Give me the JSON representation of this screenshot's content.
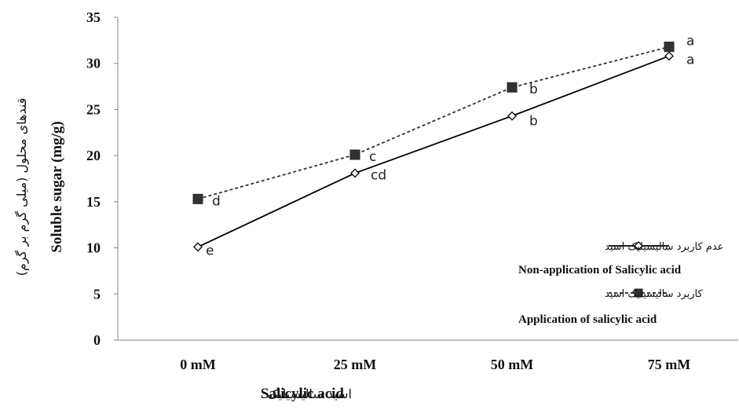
{
  "chart_data": {
    "type": "line",
    "categories": [
      "0 mM",
      "25 mM",
      "50 mM",
      "75 mM"
    ],
    "ylim": [
      0,
      35
    ],
    "yticks": [
      0,
      5,
      10,
      15,
      20,
      25,
      30,
      35
    ],
    "ylabel_en": "Soluble sugar (mg/g)",
    "ylabel_fa": "قندهای محلول (میلی گرم بر گرم)",
    "xlabel_en": "Salicylic acid",
    "xlabel_fa": "اسید سالیسیلیک",
    "grid": false,
    "legend_position": "right",
    "series": [
      {
        "name_fa": "عدم کاربرد سالیسیلیک اسید",
        "name_en": "Non-application of Salicylic acid",
        "values": [
          10.1,
          18.1,
          24.3,
          30.8
        ],
        "letters": [
          "e",
          "cd",
          "b",
          "a"
        ],
        "line_style": "solid",
        "marker": "diamond-open",
        "color": "#000000"
      },
      {
        "name_fa": "کاربرد سالیسیلیک اسید",
        "name_en": "Application of salicylic acid",
        "values": [
          15.3,
          20.1,
          27.4,
          31.8
        ],
        "letters": [
          "d",
          "c",
          "b",
          "a"
        ],
        "line_style": "dashed",
        "marker": "square-filled",
        "color": "#333333"
      }
    ]
  }
}
